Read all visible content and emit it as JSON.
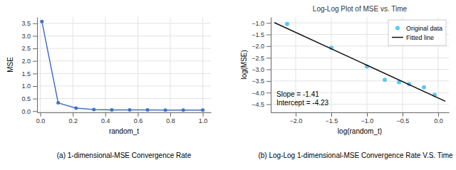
{
  "chart_data": [
    {
      "type": "line",
      "x": [
        0.01,
        0.11,
        0.22,
        0.33,
        0.44,
        0.55,
        0.66,
        0.77,
        0.88,
        1.0
      ],
      "values": [
        3.57,
        0.33,
        0.12,
        0.06,
        0.05,
        0.05,
        0.05,
        0.04,
        0.04,
        0.04
      ],
      "color": "#4472c4",
      "marker": "circle",
      "xlabel": "random_t",
      "ylabel": "MSE",
      "caption": "(a)  1-dimensional-MSE Convergence Rate",
      "xlim": [
        -0.02,
        1.05
      ],
      "ylim": [
        -0.05,
        3.75
      ],
      "xticks": [
        {
          "value": 0,
          "label": "0.0"
        },
        0.2,
        0.4,
        0.6,
        0.8,
        {
          "value": 1,
          "label": "1.0"
        }
      ],
      "yticks": [
        {
          "value": 0,
          "label": "0.0"
        },
        0.5,
        {
          "value": 1,
          "label": "1.0"
        },
        1.5,
        {
          "value": 2,
          "label": "2.0"
        },
        2.5,
        {
          "value": 3,
          "label": "3.0"
        },
        3.5
      ],
      "grid": true
    },
    {
      "type": "scatter",
      "title": "Log-Log Plot of MSE vs. Time",
      "series": [
        {
          "name": "Original data",
          "type": "scatter",
          "color": "#5bc8f5",
          "marker": "circle",
          "x": [
            -2.12,
            -1.5,
            -1.0,
            -0.75,
            -0.55,
            -0.41,
            -0.2,
            -0.05
          ],
          "values": [
            -1.05,
            -2.07,
            -2.88,
            -3.45,
            -3.55,
            -3.63,
            -3.77,
            -4.1
          ]
        },
        {
          "name": "Fitted line",
          "type": "line",
          "color": "#111111",
          "line_style": "solid",
          "x": [
            -2.3,
            0.1
          ],
          "values": [
            -0.987,
            -4.371
          ]
        }
      ],
      "xlabel": "log(random_t)",
      "ylabel": "log(MSE)",
      "annotations": [
        "Slope = -1.41",
        "Intercept = -4.23"
      ],
      "caption": "(b) Log-Log 1-dimensional-MSE Convergence Rate V.S. Time",
      "xlim": [
        -2.35,
        0.15
      ],
      "ylim": [
        -4.85,
        -0.75
      ],
      "xticks": [
        {
          "value": -2,
          "label": "−2.0"
        },
        {
          "value": -1.5,
          "label": "−1.5"
        },
        {
          "value": -1,
          "label": "−1.0"
        },
        {
          "value": -0.5,
          "label": "−0.5"
        },
        {
          "value": 0,
          "label": "0.0"
        }
      ],
      "yticks": [
        {
          "value": -4.5,
          "label": "−4.5"
        },
        {
          "value": -4,
          "label": "−4.0"
        },
        {
          "value": -3.5,
          "label": "−3.5"
        },
        {
          "value": -3,
          "label": "−3.0"
        },
        {
          "value": -2.5,
          "label": "−2.5"
        },
        {
          "value": -2,
          "label": "−2.0"
        },
        {
          "value": -1.5,
          "label": "−1.5"
        },
        {
          "value": -1,
          "label": "−1.0"
        }
      ],
      "grid": true,
      "legend": "upper right"
    }
  ]
}
